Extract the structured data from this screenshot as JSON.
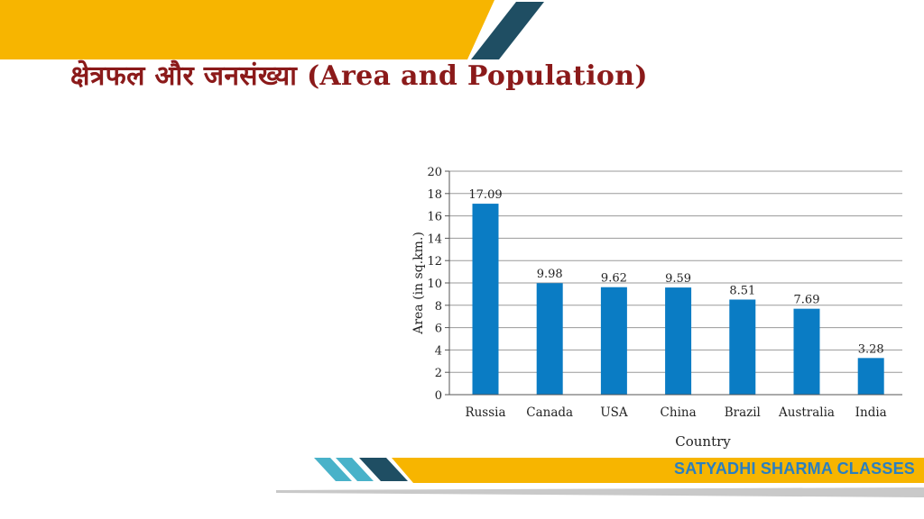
{
  "page": {
    "title": "क्षेत्रफल और जनसंख्या (Area and Population)",
    "footer_brand": "SATYADHI SHARMA CLASSES"
  },
  "colors": {
    "band_yellow": "#f7b500",
    "band_dark": "#1f4e63",
    "band_teal": "#49b2c9",
    "bar_blue": "#0a7cc4",
    "title_red": "#8b1a1a",
    "brand_blue": "#2a7fc1"
  },
  "chart_data": {
    "type": "bar",
    "categories": [
      "Russia",
      "Canada",
      "USA",
      "China",
      "Brazil",
      "Australia",
      "India"
    ],
    "values": [
      17.09,
      9.98,
      9.62,
      9.59,
      8.51,
      7.69,
      3.28
    ],
    "data_labels": [
      "17.09",
      "9.98",
      "9.62",
      "9.59",
      "8.51",
      "7.69",
      "3.28"
    ],
    "title": "",
    "xlabel": "Country",
    "ylabel": "Area (in sq.km.)",
    "ylim": [
      0,
      20
    ],
    "yticks": [
      0,
      2,
      4,
      6,
      8,
      10,
      12,
      14,
      16,
      18,
      20
    ],
    "grid": true,
    "legend": "none"
  }
}
